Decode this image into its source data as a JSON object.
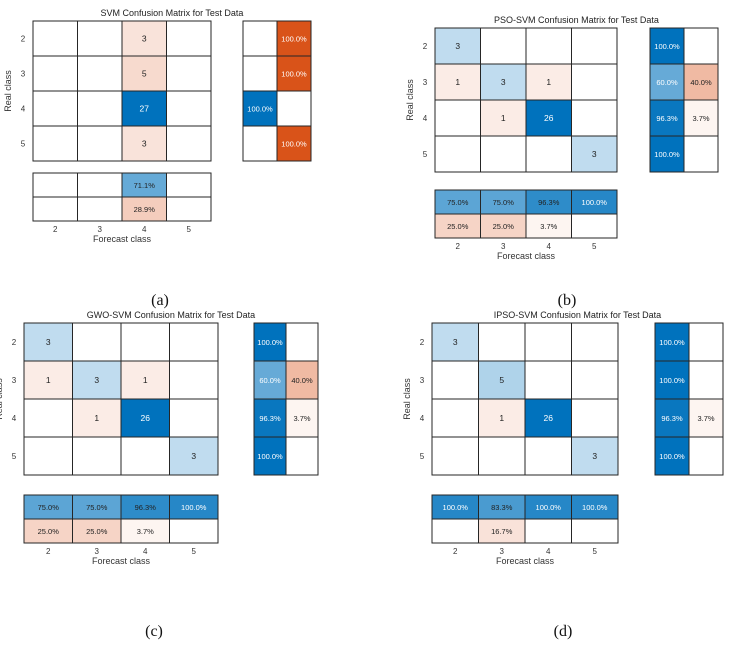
{
  "colors": {
    "blue_dark": "#0072bd",
    "orange_dark": "#d95319",
    "border": "#262626",
    "empty": "#ffffff"
  },
  "chart_data": [
    {
      "type": "heatmap",
      "title": "SVM Confusion Matrix for Test Data",
      "caption": "(a)",
      "xlabel": "Forecast class",
      "ylabel": "Real class",
      "classes": [
        "2",
        "3",
        "4",
        "5"
      ],
      "matrix": [
        [
          0,
          0,
          3,
          0
        ],
        [
          0,
          0,
          5,
          0
        ],
        [
          0,
          0,
          27,
          0
        ],
        [
          0,
          0,
          3,
          0
        ]
      ],
      "row_summary": [
        [
          "",
          "100.0%"
        ],
        [
          "",
          "100.0%"
        ],
        [
          "100.0%",
          ""
        ],
        [
          "",
          "100.0%"
        ]
      ],
      "col_summary": [
        [
          "",
          "",
          "71.1%",
          ""
        ],
        [
          "",
          "",
          "28.9%",
          ""
        ]
      ]
    },
    {
      "type": "heatmap",
      "title": "PSO-SVM Confusion Matrix for Test Data",
      "caption": "(b)",
      "xlabel": "Forecast class",
      "ylabel": "Real class",
      "classes": [
        "2",
        "3",
        "4",
        "5"
      ],
      "matrix": [
        [
          3,
          0,
          0,
          0
        ],
        [
          1,
          3,
          1,
          0
        ],
        [
          0,
          1,
          26,
          0
        ],
        [
          0,
          0,
          0,
          3
        ]
      ],
      "row_summary": [
        [
          "100.0%",
          ""
        ],
        [
          "60.0%",
          "40.0%"
        ],
        [
          "96.3%",
          "3.7%"
        ],
        [
          "100.0%",
          ""
        ]
      ],
      "col_summary": [
        [
          "75.0%",
          "75.0%",
          "96.3%",
          "100.0%"
        ],
        [
          "25.0%",
          "25.0%",
          "3.7%",
          ""
        ]
      ]
    },
    {
      "type": "heatmap",
      "title": "GWO-SVM Confusion Matrix for Test Data",
      "caption": "(c)",
      "xlabel": "Forecast class",
      "ylabel": "Real class",
      "classes": [
        "2",
        "3",
        "4",
        "5"
      ],
      "matrix": [
        [
          3,
          0,
          0,
          0
        ],
        [
          1,
          3,
          1,
          0
        ],
        [
          0,
          1,
          26,
          0
        ],
        [
          0,
          0,
          0,
          3
        ]
      ],
      "row_summary": [
        [
          "100.0%",
          ""
        ],
        [
          "60.0%",
          "40.0%"
        ],
        [
          "96.3%",
          "3.7%"
        ],
        [
          "100.0%",
          ""
        ]
      ],
      "col_summary": [
        [
          "75.0%",
          "75.0%",
          "96.3%",
          "100.0%"
        ],
        [
          "25.0%",
          "25.0%",
          "3.7%",
          ""
        ]
      ]
    },
    {
      "type": "heatmap",
      "title": "IPSO-SVM Confusion Matrix for Test Data",
      "caption": "(d)",
      "xlabel": "Forecast class",
      "ylabel": "Real class",
      "classes": [
        "2",
        "3",
        "4",
        "5"
      ],
      "matrix": [
        [
          3,
          0,
          0,
          0
        ],
        [
          0,
          5,
          0,
          0
        ],
        [
          0,
          1,
          26,
          0
        ],
        [
          0,
          0,
          0,
          3
        ]
      ],
      "row_summary": [
        [
          "100.0%",
          ""
        ],
        [
          "100.0%",
          ""
        ],
        [
          "96.3%",
          "3.7%"
        ],
        [
          "100.0%",
          ""
        ]
      ],
      "col_summary": [
        [
          "100.0%",
          "83.3%",
          "100.0%",
          "100.0%"
        ],
        [
          "",
          "16.7%",
          "",
          ""
        ]
      ]
    }
  ]
}
